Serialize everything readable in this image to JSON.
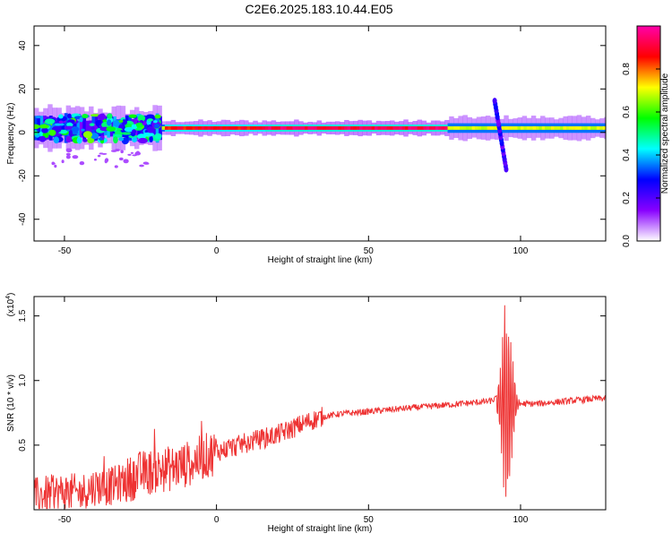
{
  "title": "C2E6.2025.183.10.44.E05",
  "chart_data": [
    {
      "type": "heatmap",
      "name": "spectrogram",
      "xlabel": "Height of straight line (km)",
      "ylabel": "Frequency (Hz)",
      "xlim": [
        -60,
        128
      ],
      "ylim": [
        -50,
        49
      ],
      "xticks": [
        -50,
        0,
        50,
        100
      ],
      "yticks": [
        -40,
        -20,
        0,
        20,
        40
      ],
      "colorbar": {
        "label": "Normalized spectral amplitude",
        "range": [
          0.0,
          1.0
        ],
        "ticks": [
          "0.0",
          "0.2",
          "0.4",
          "0.6",
          "0.8"
        ],
        "tick_values": [
          0.0,
          0.2,
          0.4,
          0.6,
          0.8
        ],
        "colormap": [
          "#ffffff",
          "#8800ff",
          "#0000ff",
          "#00ffff",
          "#00ff00",
          "#ffff00",
          "#ff0000",
          "#ff00aa"
        ]
      },
      "band": {
        "center_frequency_hz": 2,
        "segments": [
          {
            "x_start": -60,
            "x_end": -18,
            "amplitude": 0.55,
            "note": "scattered patchy energy"
          },
          {
            "x_start": -18,
            "x_end": 15,
            "amplitude": 0.9
          },
          {
            "x_start": 15,
            "x_end": 75,
            "amplitude": 1.0
          },
          {
            "x_start": 75,
            "x_end": 128,
            "amplitude": 0.6
          }
        ],
        "burst": {
          "x": 93,
          "freq_min_hz": -17,
          "freq_max_hz": 15
        }
      }
    },
    {
      "type": "line",
      "name": "snr",
      "xlabel": "Height of straight line (km)",
      "ylabel": "SNR (10 * v/v)",
      "scale_label": "(x10",
      "scale_exponent": "4",
      "xlim": [
        -60,
        128
      ],
      "ylim": [
        0.0,
        1.65
      ],
      "xticks": [
        -50,
        0,
        50,
        100
      ],
      "yticks": [
        0.5,
        1.0,
        1.5
      ],
      "ytick_labels": [
        "0.5",
        "1.0",
        "1.5"
      ],
      "color": "#ee3333",
      "series": [
        {
          "x": [
            -60,
            -55,
            -50,
            -45,
            -40,
            -35,
            -30,
            -25,
            -20,
            -15,
            -10,
            -5,
            0,
            5,
            10,
            15,
            20,
            25,
            30,
            35,
            40,
            45,
            50,
            55,
            60,
            65,
            70,
            75,
            80,
            85,
            90,
            93,
            94,
            95,
            96,
            97,
            98,
            99,
            100,
            105,
            110,
            115,
            120,
            125,
            128
          ],
          "y": [
            0.1,
            0.12,
            0.14,
            0.13,
            0.18,
            0.18,
            0.22,
            0.28,
            0.3,
            0.32,
            0.35,
            0.4,
            0.45,
            0.48,
            0.52,
            0.55,
            0.58,
            0.63,
            0.68,
            0.72,
            0.74,
            0.75,
            0.76,
            0.77,
            0.78,
            0.79,
            0.8,
            0.81,
            0.82,
            0.83,
            0.84,
            0.87,
            1.62,
            0.1,
            1.15,
            0.15,
            1.2,
            0.5,
            0.82,
            0.82,
            0.83,
            0.84,
            0.85,
            0.86,
            0.86
          ]
        }
      ]
    }
  ]
}
